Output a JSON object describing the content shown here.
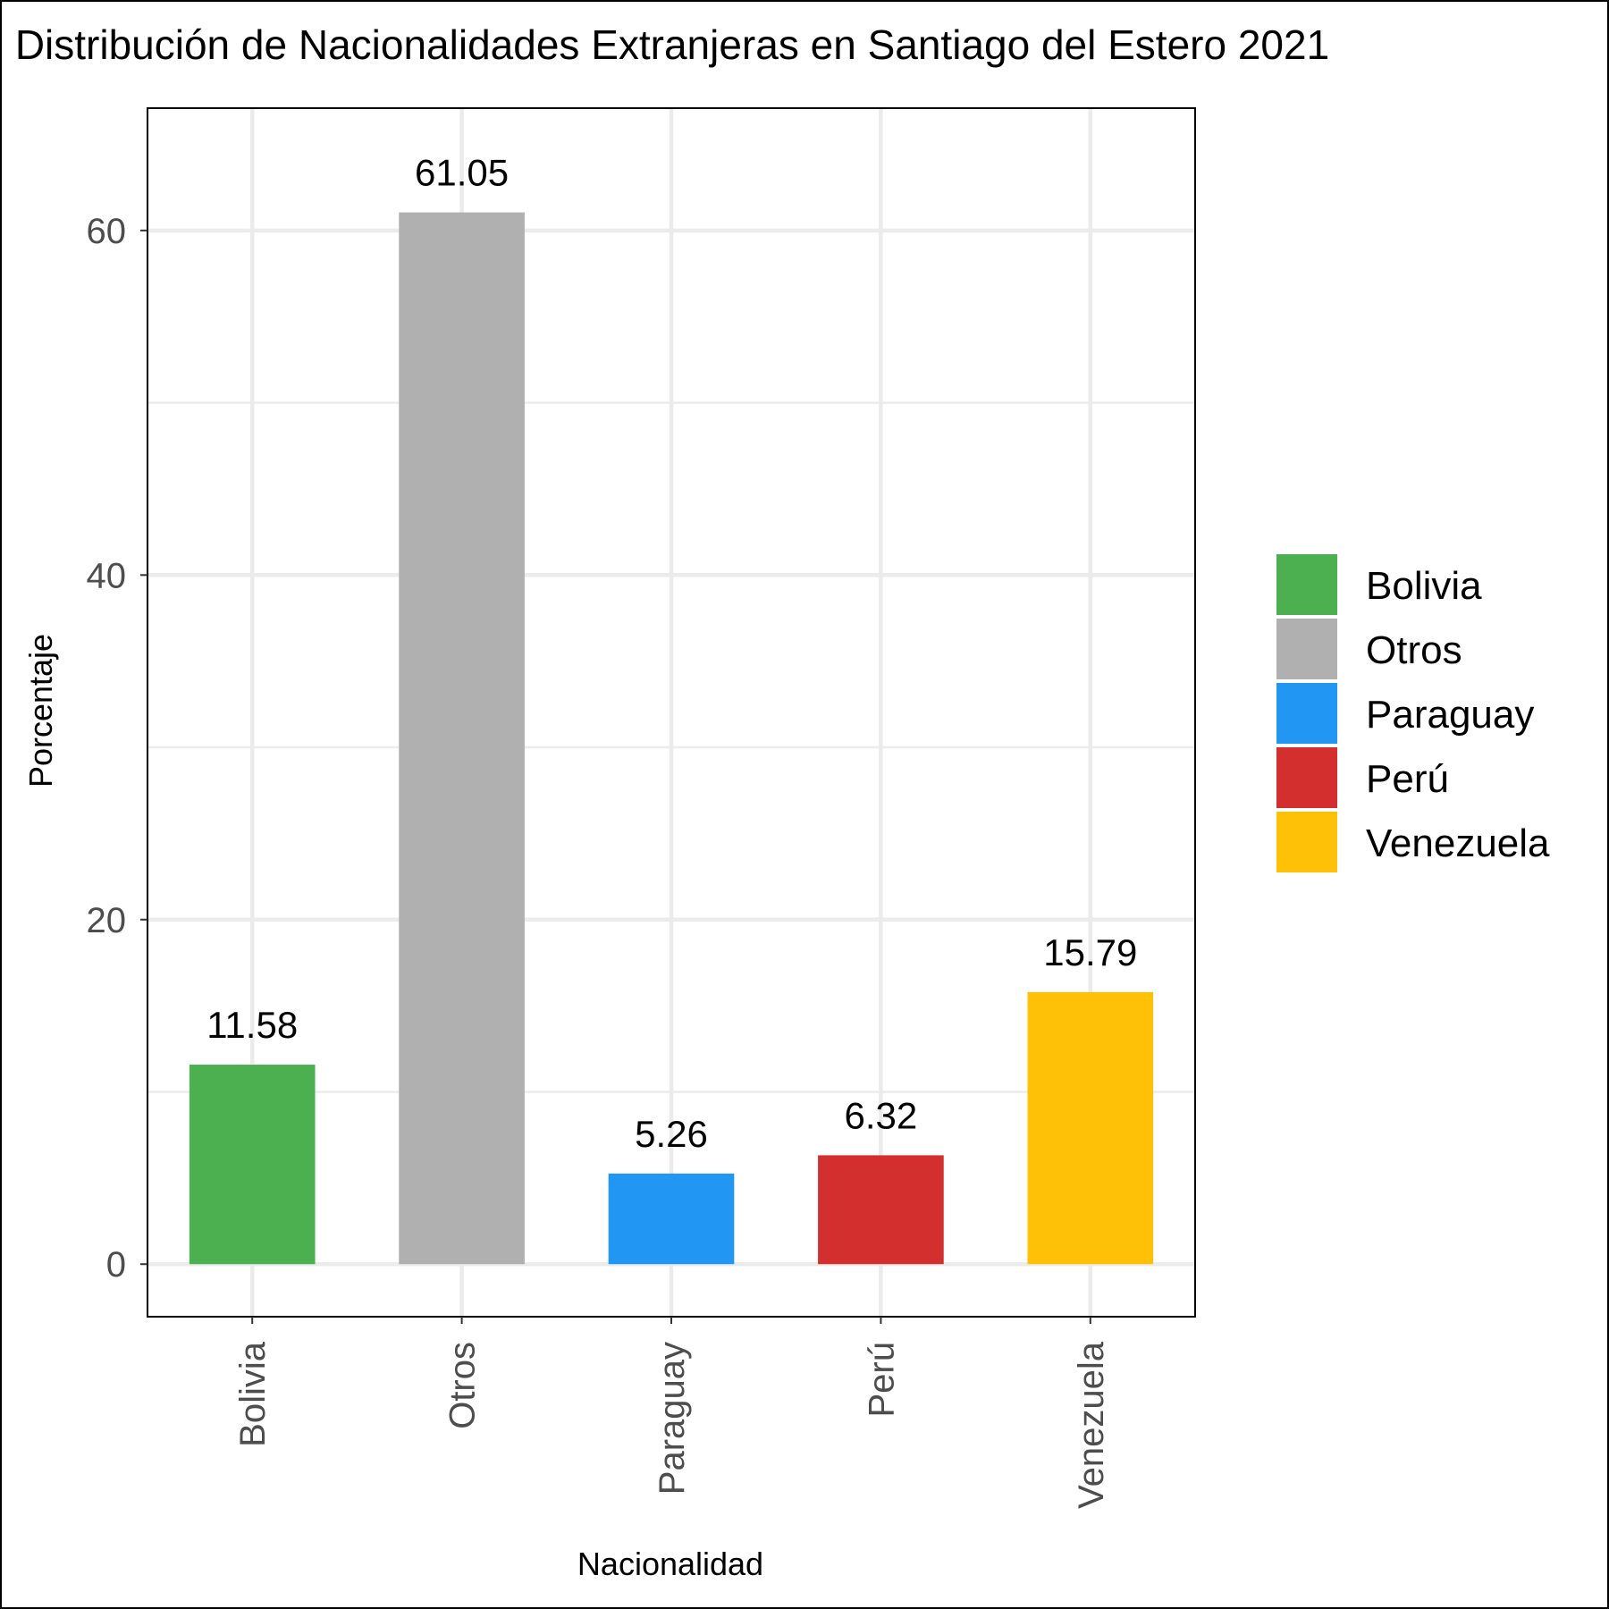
{
  "chart_data": {
    "type": "bar",
    "title": "Distribución de Nacionalidades Extranjeras en Santiago del Estero 2021",
    "xlabel": "Nacionalidad",
    "ylabel": "Porcentaje",
    "categories": [
      "Bolivia",
      "Otros",
      "Paraguay",
      "Perú",
      "Venezuela"
    ],
    "values": [
      11.58,
      61.05,
      5.26,
      6.32,
      15.79
    ],
    "value_labels": [
      "11.58",
      "61.05",
      "5.26",
      "6.32",
      "15.79"
    ],
    "colors": [
      "#4caf50",
      "#b0b0b0",
      "#2196f3",
      "#d32f2f",
      "#ffc107"
    ],
    "ylim": [
      -3.05,
      67.1
    ],
    "yticks": [
      0,
      20,
      40,
      60
    ],
    "ytick_labels": [
      "0",
      "20",
      "40",
      "60"
    ],
    "grid": true,
    "legend_position": "right",
    "legend": [
      {
        "label": "Bolivia",
        "color": "#4caf50"
      },
      {
        "label": "Otros",
        "color": "#b0b0b0"
      },
      {
        "label": "Paraguay",
        "color": "#2196f3"
      },
      {
        "label": "Perú",
        "color": "#d32f2f"
      },
      {
        "label": "Venezuela",
        "color": "#ffc107"
      }
    ]
  }
}
